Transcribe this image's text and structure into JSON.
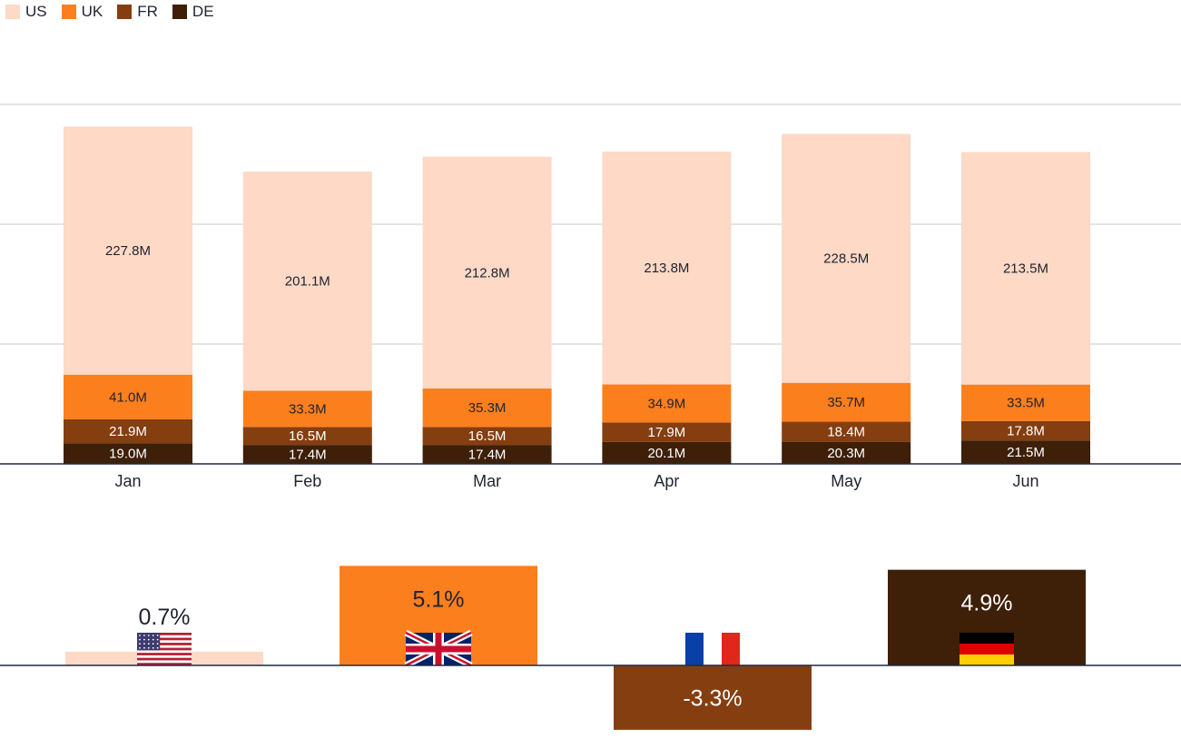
{
  "legend": [
    {
      "name": "US",
      "color": "#fdd9c6"
    },
    {
      "name": "UK",
      "color": "#fc7f1d"
    },
    {
      "name": "FR",
      "color": "#853e10"
    },
    {
      "name": "DE",
      "color": "#3e1f08"
    }
  ],
  "chart_data": [
    {
      "type": "bar",
      "stacked": true,
      "categories": [
        "Jan",
        "Feb",
        "Mar",
        "Apr",
        "May",
        "Jun"
      ],
      "series": [
        {
          "name": "DE",
          "values": [
            19.0,
            17.4,
            17.4,
            20.1,
            20.3,
            21.5
          ],
          "labels": [
            "19.0M",
            "17.4M",
            "17.4M",
            "20.1M",
            "20.3M",
            "21.5M"
          ],
          "color": "#3e1f08"
        },
        {
          "name": "FR",
          "values": [
            21.9,
            16.5,
            16.5,
            17.9,
            18.4,
            17.8
          ],
          "labels": [
            "21.9M",
            "16.5M",
            "16.5M",
            "17.9M",
            "18.4M",
            "17.8M"
          ],
          "color": "#853e10"
        },
        {
          "name": "UK",
          "values": [
            41.0,
            33.3,
            35.3,
            34.9,
            35.7,
            33.5
          ],
          "labels": [
            "41.0M",
            "33.3M",
            "35.3M",
            "34.9M",
            "35.7M",
            "33.5M"
          ],
          "color": "#fc7f1d"
        },
        {
          "name": "US",
          "values": [
            227.8,
            201.1,
            212.8,
            213.8,
            228.5,
            213.5
          ],
          "labels": [
            "227.8M",
            "201.1M",
            "212.8M",
            "213.8M",
            "228.5M",
            "213.5M"
          ],
          "color": "#fdd9c6"
        }
      ],
      "grid": true,
      "legend_position": "top-left"
    },
    {
      "type": "bar",
      "categories": [
        "US",
        "UK",
        "FR",
        "DE"
      ],
      "values": [
        0.7,
        5.1,
        -3.3,
        4.9
      ],
      "labels": [
        "0.7%",
        "5.1%",
        "-3.3%",
        "4.9%"
      ],
      "colors": [
        "#fdd9c6",
        "#fc7f1d",
        "#853e10",
        "#3e1f08"
      ],
      "icons": [
        "us-flag-icon",
        "uk-flag-icon",
        "fr-flag-icon",
        "de-flag-icon"
      ]
    }
  ]
}
